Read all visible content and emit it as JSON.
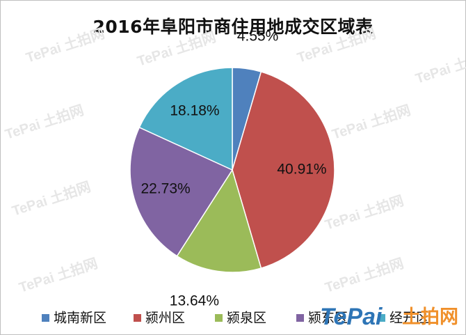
{
  "chart_data": {
    "type": "pie",
    "title": "2016年阜阳市商住用地成交区域表",
    "start_angle_deg": 0,
    "direction": "clockwise",
    "legend_position": "bottom",
    "slices": [
      {
        "name": "城南新区",
        "value": 4.55,
        "label": "4.55%",
        "color": "#4f81bd"
      },
      {
        "name": "颍州区",
        "value": 40.91,
        "label": "40.91%",
        "color": "#c0504d"
      },
      {
        "name": "颍泉区",
        "value": 13.64,
        "label": "13.64%",
        "color": "#9bbb59"
      },
      {
        "name": "颍东区",
        "value": 22.73,
        "label": "22.73%",
        "color": "#8064a2"
      },
      {
        "name": "经开区",
        "value": 18.18,
        "label": "18.18%",
        "color": "#4bacc6"
      }
    ]
  },
  "watermark": {
    "brand": "TePai",
    "cn": "土拍网"
  }
}
